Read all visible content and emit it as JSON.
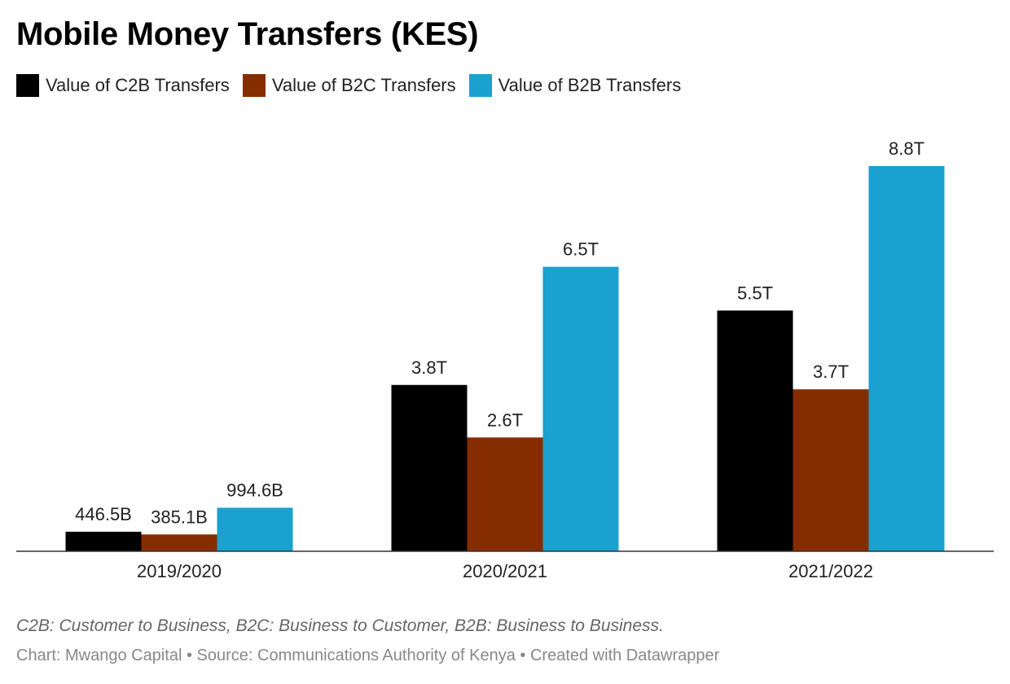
{
  "title": "Mobile Money Transfers (KES)",
  "note": "C2B: Customer to Business, B2C: Business to Customer, B2B: Business to Business.",
  "credit": "Chart: Mwango Capital • Source: Communications Authority of Kenya • Created with Datawrapper",
  "chart_data": {
    "type": "bar",
    "title": "Mobile Money Transfers (KES)",
    "xlabel": "",
    "ylabel": "",
    "unit": "KES",
    "ylim": [
      0,
      8800
    ],
    "grid": false,
    "legend_position": "top-left",
    "categories": [
      "2019/2020",
      "2020/2021",
      "2021/2022"
    ],
    "series": [
      {
        "name": "Value of C2B Transfers",
        "color": "#000000",
        "values_billion": [
          446.5,
          3800,
          5500
        ],
        "labels": [
          "446.5B",
          "3.8T",
          "5.5T"
        ]
      },
      {
        "name": "Value of B2C Transfers",
        "color": "#862d00",
        "values_billion": [
          385.1,
          2600,
          3700
        ],
        "labels": [
          "385.1B",
          "2.6T",
          "3.7T"
        ]
      },
      {
        "name": "Value of B2B Transfers",
        "color": "#1aa1cf",
        "values_billion": [
          994.6,
          6500,
          8800
        ],
        "labels": [
          "994.6B",
          "6.5T",
          "8.8T"
        ]
      }
    ]
  }
}
